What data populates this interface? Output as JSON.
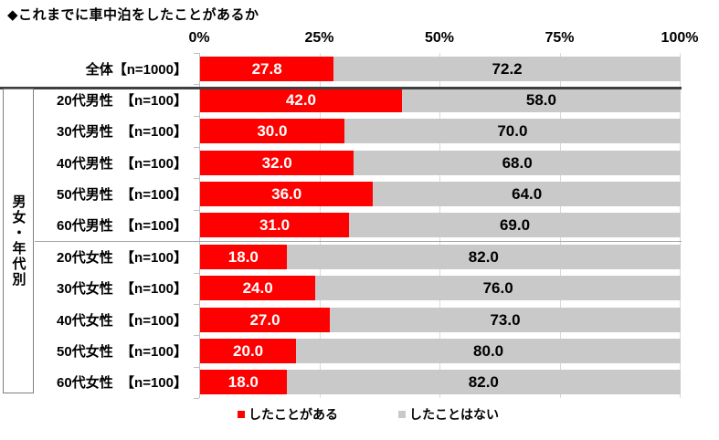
{
  "title": "◆これまでに車中泊をしたことがあるか",
  "group_label": "男女・年代別",
  "legend": [
    {
      "label": "したことがある",
      "color": "#ff0000"
    },
    {
      "label": "したことはない",
      "color": "#c9c9c9"
    }
  ],
  "chart_data": {
    "type": "bar",
    "orientation": "horizontal",
    "stacked": true,
    "title": "◆これまでに車中泊をしたことがあるか",
    "categories": [
      "全体【n=1000】",
      "20代男性  【n=100】",
      "30代男性  【n=100】",
      "40代男性  【n=100】",
      "50代男性  【n=100】",
      "60代男性  【n=100】",
      "20代女性  【n=100】",
      "30代女性  【n=100】",
      "40代女性  【n=100】",
      "50代女性  【n=100】",
      "60代女性  【n=100】"
    ],
    "series": [
      {
        "name": "したことがある",
        "color": "#ff0000",
        "values": [
          27.8,
          42.0,
          30.0,
          32.0,
          36.0,
          31.0,
          18.0,
          24.0,
          27.0,
          20.0,
          18.0
        ]
      },
      {
        "name": "したことはない",
        "color": "#c9c9c9",
        "values": [
          72.2,
          58.0,
          70.0,
          68.0,
          64.0,
          69.0,
          82.0,
          76.0,
          73.0,
          80.0,
          82.0
        ]
      }
    ],
    "xlim": [
      0,
      100
    ],
    "x_ticks": [
      "0%",
      "25%",
      "50%",
      "75%",
      "100%"
    ],
    "value_label_format": "one_decimal",
    "grid": true,
    "legend_position": "bottom",
    "group_bracket_rows": [
      1,
      10
    ],
    "separators": {
      "thick_after_row": 0,
      "thin_after_row": 5
    }
  }
}
